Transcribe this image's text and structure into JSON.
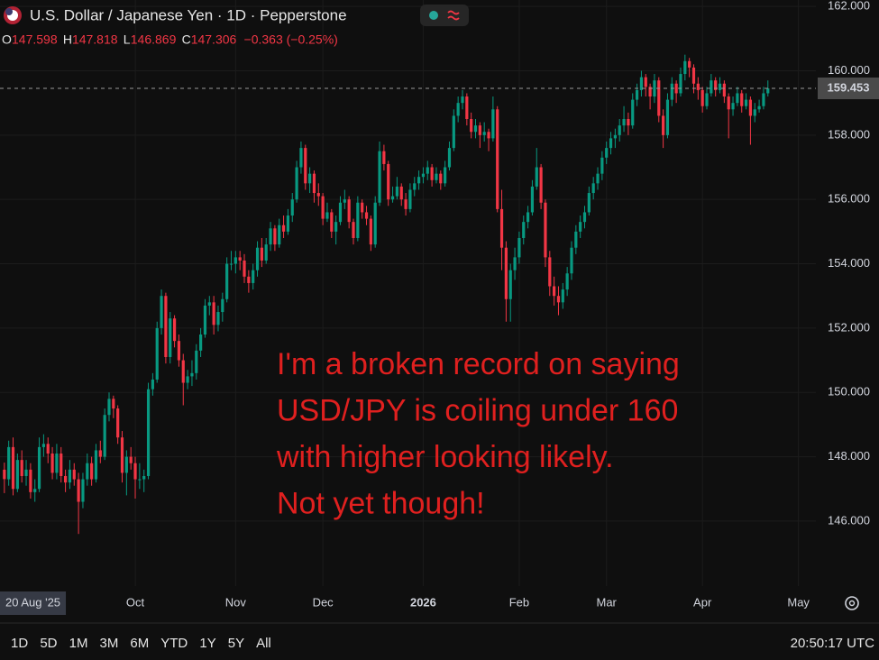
{
  "chart_data": {
    "type": "candlestick",
    "title": "U.S. Dollar / Japanese Yen · 1D · Pepperstone",
    "ohlc_labels": [
      "O",
      "H",
      "L",
      "C"
    ],
    "change_label": "−0.363 (−0.25%)",
    "annotation": [
      "I'm a broken record on saying",
      "USD/JPY is coiling under 160",
      "with higher looking likely.",
      "Not yet though!"
    ],
    "annotation_color": "#e0201f",
    "up_color": "#089981",
    "down_color": "#f23645",
    "grid": true,
    "ylim": [
      143.98,
      162.2
    ],
    "yticks": [
      {
        "value": 162,
        "label": "162.000"
      },
      {
        "value": 160,
        "label": "160.000"
      },
      {
        "value": 158,
        "label": "158.000"
      },
      {
        "value": 156,
        "label": "156.000"
      },
      {
        "value": 154,
        "label": "154.000"
      },
      {
        "value": 152,
        "label": "152.000"
      },
      {
        "value": 150,
        "label": "150.000"
      },
      {
        "value": 148,
        "label": "148.000"
      },
      {
        "value": 146,
        "label": "146.000"
      }
    ],
    "xlim": [
      -1,
      186
    ],
    "xticks": [
      {
        "value": 0,
        "label": "20 Aug '25"
      },
      {
        "value": 30,
        "label": "Oct"
      },
      {
        "value": 53,
        "label": "Nov"
      },
      {
        "value": 73,
        "label": "Dec"
      },
      {
        "value": 96,
        "label": "2026"
      },
      {
        "value": 118,
        "label": "Feb"
      },
      {
        "value": 138,
        "label": "Mar"
      },
      {
        "value": 160,
        "label": "Apr"
      },
      {
        "value": 182,
        "label": "May"
      }
    ],
    "series": [
      {
        "name": "USDJPY",
        "candles": [
          [
            147.598,
            147.818,
            146.869,
            147.306
          ],
          [
            147.3,
            148.5,
            147.1,
            148.3
          ],
          [
            148.3,
            148.6,
            146.8,
            147.0
          ],
          [
            147.0,
            148.1,
            146.9,
            147.9
          ],
          [
            147.9,
            148.2,
            147.2,
            147.4
          ],
          [
            147.4,
            147.9,
            147.1,
            147.6
          ],
          [
            147.6,
            147.8,
            146.7,
            146.9
          ],
          [
            146.9,
            147.3,
            146.6,
            147.0
          ],
          [
            147.0,
            148.6,
            146.9,
            148.3
          ],
          [
            148.3,
            148.7,
            148.0,
            148.4
          ],
          [
            148.4,
            148.6,
            147.8,
            148.1
          ],
          [
            148.1,
            148.3,
            147.3,
            147.5
          ],
          [
            147.5,
            148.4,
            147.3,
            148.1
          ],
          [
            148.1,
            148.3,
            147.2,
            147.4
          ],
          [
            147.4,
            147.6,
            146.9,
            147.2
          ],
          [
            147.2,
            147.9,
            147.0,
            147.6
          ],
          [
            147.6,
            147.8,
            147.1,
            147.3
          ],
          [
            147.3,
            147.5,
            145.6,
            146.6
          ],
          [
            146.6,
            147.5,
            146.4,
            147.3
          ],
          [
            147.3,
            148.1,
            147.1,
            147.8
          ],
          [
            147.8,
            148.0,
            147.1,
            147.3
          ],
          [
            147.3,
            148.4,
            147.2,
            148.2
          ],
          [
            148.2,
            148.5,
            147.8,
            148.0
          ],
          [
            148.0,
            149.5,
            147.9,
            149.3
          ],
          [
            149.3,
            150.0,
            149.1,
            149.8
          ],
          [
            149.8,
            149.9,
            149.2,
            149.5
          ],
          [
            149.5,
            149.6,
            148.4,
            148.6
          ],
          [
            148.6,
            148.8,
            147.2,
            147.5
          ],
          [
            147.5,
            148.2,
            146.8,
            148.0
          ],
          [
            148.0,
            148.3,
            147.6,
            147.8
          ],
          [
            147.8,
            148.0,
            146.7,
            147.3
          ],
          [
            147.3,
            147.8,
            147.0,
            147.3
          ],
          [
            147.3,
            147.6,
            146.9,
            147.4
          ],
          [
            147.4,
            150.3,
            147.3,
            150.1
          ],
          [
            150.1,
            150.6,
            149.9,
            150.4
          ],
          [
            150.4,
            152.2,
            150.3,
            152.0
          ],
          [
            152.0,
            153.2,
            151.8,
            153.0
          ],
          [
            153.0,
            153.1,
            150.9,
            151.1
          ],
          [
            151.1,
            152.5,
            150.9,
            152.3
          ],
          [
            152.3,
            152.4,
            151.4,
            151.6
          ],
          [
            151.6,
            151.8,
            150.8,
            151.0
          ],
          [
            151.0,
            151.2,
            149.6,
            150.3
          ],
          [
            150.3,
            150.7,
            150.1,
            150.5
          ],
          [
            150.5,
            151.0,
            150.2,
            150.6
          ],
          [
            150.6,
            151.5,
            150.4,
            151.3
          ],
          [
            151.3,
            152.0,
            151.1,
            151.8
          ],
          [
            151.8,
            152.9,
            151.7,
            152.7
          ],
          [
            152.7,
            153.0,
            152.4,
            152.8
          ],
          [
            152.8,
            153.0,
            151.8,
            152.1
          ],
          [
            152.1,
            152.7,
            151.9,
            152.5
          ],
          [
            152.5,
            153.1,
            152.2,
            152.9
          ],
          [
            152.9,
            154.2,
            152.8,
            154.0
          ],
          [
            154.0,
            154.4,
            153.8,
            154.0
          ],
          [
            154.0,
            154.4,
            153.7,
            154.2
          ],
          [
            154.2,
            154.4,
            153.8,
            154.1
          ],
          [
            154.1,
            154.3,
            153.4,
            153.6
          ],
          [
            153.6,
            153.8,
            153.1,
            153.4
          ],
          [
            153.4,
            154.0,
            153.2,
            153.8
          ],
          [
            153.8,
            154.7,
            153.6,
            154.5
          ],
          [
            154.5,
            154.8,
            153.9,
            154.1
          ],
          [
            154.1,
            154.8,
            154.0,
            154.6
          ],
          [
            154.6,
            155.3,
            154.4,
            155.1
          ],
          [
            155.1,
            155.2,
            154.4,
            154.6
          ],
          [
            154.6,
            155.4,
            154.5,
            155.2
          ],
          [
            155.2,
            155.5,
            154.8,
            155.0
          ],
          [
            155.0,
            155.7,
            154.9,
            155.5
          ],
          [
            155.5,
            156.2,
            155.3,
            156.0
          ],
          [
            156.0,
            157.2,
            155.9,
            157.0
          ],
          [
            157.0,
            157.8,
            156.8,
            157.6
          ],
          [
            157.6,
            157.7,
            156.3,
            156.5
          ],
          [
            156.5,
            157.0,
            156.2,
            156.8
          ],
          [
            156.8,
            156.9,
            155.9,
            156.2
          ],
          [
            156.2,
            156.5,
            155.8,
            156.1
          ],
          [
            156.1,
            156.2,
            155.2,
            155.4
          ],
          [
            155.4,
            155.9,
            155.3,
            155.6
          ],
          [
            155.6,
            155.7,
            154.8,
            155.0
          ],
          [
            155.0,
            155.5,
            154.6,
            155.3
          ],
          [
            155.3,
            156.1,
            155.2,
            155.9
          ],
          [
            155.9,
            156.3,
            155.7,
            156.0
          ],
          [
            156.0,
            156.1,
            155.1,
            155.3
          ],
          [
            155.3,
            155.4,
            154.6,
            154.8
          ],
          [
            154.8,
            156.1,
            154.7,
            155.9
          ],
          [
            155.9,
            156.0,
            155.4,
            155.6
          ],
          [
            155.6,
            155.8,
            155.2,
            155.4
          ],
          [
            155.4,
            155.5,
            154.4,
            154.6
          ],
          [
            154.6,
            156.1,
            154.5,
            155.9
          ],
          [
            155.9,
            157.8,
            155.8,
            157.5
          ],
          [
            157.5,
            157.7,
            156.9,
            157.1
          ],
          [
            157.1,
            157.2,
            155.8,
            156.0
          ],
          [
            156.0,
            156.4,
            155.9,
            156.1
          ],
          [
            156.1,
            156.7,
            156.0,
            156.4
          ],
          [
            156.4,
            156.5,
            155.8,
            156.0
          ],
          [
            156.0,
            156.2,
            155.5,
            155.7
          ],
          [
            155.7,
            156.5,
            155.6,
            156.3
          ],
          [
            156.3,
            156.7,
            156.1,
            156.5
          ],
          [
            156.5,
            156.9,
            156.3,
            156.7
          ],
          [
            156.7,
            157.0,
            156.5,
            156.8
          ],
          [
            156.8,
            157.2,
            156.6,
            157.0
          ],
          [
            157.0,
            157.1,
            156.4,
            156.6
          ],
          [
            156.6,
            157.0,
            156.5,
            156.8
          ],
          [
            156.8,
            156.9,
            156.3,
            156.5
          ],
          [
            156.5,
            157.2,
            156.4,
            157.0
          ],
          [
            157.0,
            157.8,
            156.9,
            157.6
          ],
          [
            157.6,
            158.8,
            157.5,
            158.6
          ],
          [
            158.6,
            159.2,
            158.4,
            159.0
          ],
          [
            159.0,
            159.4,
            158.8,
            159.2
          ],
          [
            159.2,
            159.3,
            158.3,
            158.5
          ],
          [
            158.5,
            158.7,
            157.9,
            158.1
          ],
          [
            158.1,
            158.5,
            157.9,
            158.3
          ],
          [
            158.3,
            158.4,
            157.6,
            158.0
          ],
          [
            158.0,
            158.4,
            157.8,
            158.1
          ],
          [
            158.1,
            158.2,
            157.5,
            157.9
          ],
          [
            157.9,
            159.2,
            157.8,
            158.8
          ],
          [
            158.8,
            158.9,
            155.6,
            155.7
          ],
          [
            155.7,
            156.3,
            153.8,
            154.5
          ],
          [
            154.5,
            154.7,
            152.2,
            152.9
          ],
          [
            152.9,
            154.0,
            152.2,
            153.8
          ],
          [
            153.8,
            154.5,
            153.5,
            154.2
          ],
          [
            154.2,
            155.0,
            154.0,
            154.8
          ],
          [
            154.8,
            155.5,
            154.6,
            155.3
          ],
          [
            155.3,
            155.8,
            155.1,
            155.6
          ],
          [
            155.6,
            156.6,
            155.5,
            156.4
          ],
          [
            156.4,
            157.6,
            156.3,
            157.0
          ],
          [
            157.0,
            157.1,
            155.7,
            155.9
          ],
          [
            155.9,
            156.0,
            153.9,
            154.2
          ],
          [
            154.2,
            154.4,
            153.0,
            153.3
          ],
          [
            153.3,
            153.6,
            152.7,
            153.0
          ],
          [
            153.0,
            153.3,
            152.4,
            152.8
          ],
          [
            152.8,
            153.4,
            152.6,
            153.2
          ],
          [
            153.2,
            153.9,
            153.0,
            153.7
          ],
          [
            153.7,
            154.7,
            153.5,
            154.5
          ],
          [
            154.5,
            155.2,
            154.3,
            155.0
          ],
          [
            155.0,
            155.5,
            154.8,
            155.3
          ],
          [
            155.3,
            155.8,
            155.1,
            155.6
          ],
          [
            155.6,
            156.4,
            155.5,
            156.2
          ],
          [
            156.2,
            156.7,
            156.0,
            156.5
          ],
          [
            156.5,
            157.0,
            156.3,
            156.8
          ],
          [
            156.8,
            157.5,
            156.6,
            157.3
          ],
          [
            157.3,
            157.8,
            157.1,
            157.6
          ],
          [
            157.6,
            158.1,
            157.4,
            157.9
          ],
          [
            157.9,
            158.2,
            157.6,
            158.0
          ],
          [
            158.0,
            158.5,
            157.8,
            158.3
          ],
          [
            158.3,
            158.9,
            158.1,
            158.5
          ],
          [
            158.5,
            158.7,
            158.0,
            158.3
          ],
          [
            158.3,
            159.3,
            158.2,
            159.1
          ],
          [
            159.1,
            159.6,
            158.9,
            159.4
          ],
          [
            159.4,
            160.0,
            159.2,
            159.8
          ],
          [
            159.8,
            159.9,
            159.2,
            159.5
          ],
          [
            159.5,
            159.6,
            158.8,
            159.2
          ],
          [
            159.2,
            159.9,
            159.0,
            159.7
          ],
          [
            159.7,
            159.8,
            158.4,
            158.6
          ],
          [
            158.6,
            158.8,
            157.6,
            158.0
          ],
          [
            158.0,
            159.3,
            157.9,
            159.1
          ],
          [
            159.1,
            159.8,
            158.9,
            159.6
          ],
          [
            159.6,
            159.7,
            159.0,
            159.3
          ],
          [
            159.3,
            160.1,
            159.2,
            159.9
          ],
          [
            159.9,
            160.5,
            159.7,
            160.3
          ],
          [
            160.3,
            160.4,
            159.8,
            160.1
          ],
          [
            160.1,
            160.2,
            159.3,
            159.6
          ],
          [
            159.6,
            159.8,
            159.1,
            159.4
          ],
          [
            159.4,
            159.5,
            158.7,
            158.9
          ],
          [
            158.9,
            159.5,
            158.8,
            159.3
          ],
          [
            159.3,
            159.9,
            159.2,
            159.7
          ],
          [
            159.7,
            159.8,
            159.2,
            159.4
          ],
          [
            159.4,
            159.8,
            159.3,
            159.6
          ],
          [
            159.6,
            159.7,
            159.0,
            159.2
          ],
          [
            159.2,
            159.3,
            157.9,
            158.8
          ],
          [
            158.8,
            159.2,
            158.6,
            159.0
          ],
          [
            159.0,
            159.5,
            158.9,
            159.3
          ],
          [
            159.3,
            159.4,
            158.7,
            158.9
          ],
          [
            158.9,
            159.3,
            158.8,
            159.1
          ],
          [
            159.1,
            159.2,
            157.7,
            158.6
          ],
          [
            158.6,
            159.0,
            158.4,
            158.8
          ],
          [
            158.8,
            159.1,
            158.7,
            158.9
          ],
          [
            158.9,
            159.5,
            158.8,
            159.3
          ],
          [
            159.3,
            159.7,
            159.2,
            159.453
          ]
        ]
      }
    ]
  },
  "toolbar": {
    "ranges": [
      "1D",
      "5D",
      "1M",
      "3M",
      "6M",
      "YTD",
      "1Y",
      "5Y",
      "All"
    ],
    "clock": "20:50:17 UTC"
  }
}
